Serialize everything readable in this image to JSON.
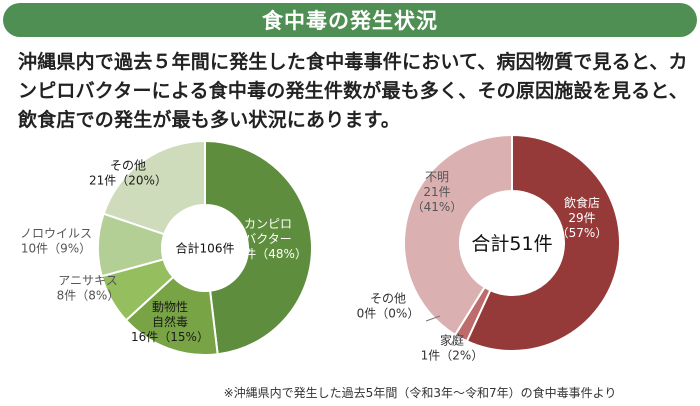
{
  "header": {
    "title": "食中毒の発生状況"
  },
  "lead_text": "沖縄県内で過去５年間に発生した食中毒事件において、病因物質で見ると、カンピロバクターによる食中毒の発生件数が最も多く、その原因施設を見ると、飲食店での発生が最も多い状況にあります。",
  "source_note": "※沖縄県内で発生した過去5年間（令和3年～令和7年）の食中毒事件より",
  "chart_data": [
    {
      "type": "pie",
      "variant": "donut",
      "center_label": "合計106件",
      "slices": [
        {
          "name_lines": [
            "カンピロ",
            "バクター"
          ],
          "count_label": "51件（48%）",
          "value": 51,
          "percent": 48,
          "color": "#5e8d3e",
          "label_color": "#ffffff"
        },
        {
          "name_lines": [
            "動物性",
            "自然毒"
          ],
          "count_label": "16件（15%）",
          "value": 16,
          "percent": 15,
          "color": "#78a446",
          "label_color": "#1a1a1a"
        },
        {
          "name_lines": [
            "アニサキス"
          ],
          "count_label": "8件（8%）",
          "value": 8,
          "percent": 8,
          "color": "#95bf5e",
          "label_color": "#555555"
        },
        {
          "name_lines": [
            "ノロウイルス"
          ],
          "count_label": "10件（9%）",
          "value": 10,
          "percent": 9,
          "color": "#b4cf96",
          "label_color": "#555555"
        },
        {
          "name_lines": [
            "その他"
          ],
          "count_label": "21件（20%）",
          "value": 21,
          "percent": 20,
          "color": "#cfdcbb",
          "label_color": "#1a1a1a"
        }
      ]
    },
    {
      "type": "pie",
      "variant": "donut",
      "center_label": "合計51件",
      "slices": [
        {
          "name_lines": [
            "飲食店"
          ],
          "count_label": "29件",
          "pct_label": "（57%）",
          "value": 29,
          "percent": 57,
          "color": "#963939",
          "label_color": "#ffffff"
        },
        {
          "name_lines": [
            "家庭"
          ],
          "count_label": "1件（2%）",
          "value": 1,
          "percent": 2,
          "color": "#bd6b6b",
          "label_color": "#333333"
        },
        {
          "name_lines": [
            "その他"
          ],
          "count_label": "0件（0%）",
          "value": 0,
          "percent": 0,
          "color": "#cccccc",
          "label_color": "#333333"
        },
        {
          "name_lines": [
            "不明"
          ],
          "count_label": "21件",
          "pct_label": "（41%）",
          "value": 21,
          "percent": 41,
          "color": "#dbb0b0",
          "label_color": "#555555"
        }
      ]
    }
  ]
}
